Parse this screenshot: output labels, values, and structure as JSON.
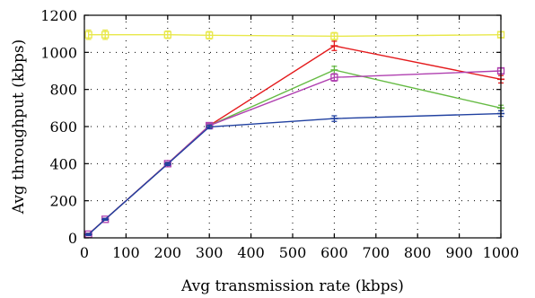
{
  "chart_data": {
    "type": "line",
    "xlabel": "Avg transmission rate (kbps)",
    "ylabel": "Avg throughput (kbps)",
    "xlim": [
      0,
      1000
    ],
    "ylim": [
      0,
      1200
    ],
    "xticks": [
      0,
      100,
      200,
      300,
      400,
      500,
      600,
      700,
      800,
      900,
      1000
    ],
    "yticks": [
      0,
      200,
      400,
      600,
      800,
      1000,
      1200
    ],
    "grid": true,
    "series": [
      {
        "color": "#e8e84a",
        "marker": "square",
        "x": [
          10,
          50,
          200,
          300,
          600,
          1000
        ],
        "y": [
          1095,
          1095,
          1095,
          1092,
          1087,
          1095
        ],
        "err": [
          25,
          25,
          20,
          20,
          20,
          15
        ]
      },
      {
        "color": "#e41a1c",
        "marker": "dash",
        "x": [
          10,
          50,
          200,
          300,
          600,
          1000
        ],
        "y": [
          20,
          100,
          400,
          605,
          1035,
          855
        ],
        "err": [
          5,
          5,
          8,
          10,
          25,
          20
        ]
      },
      {
        "color": "#66bb44",
        "marker": "dash",
        "x": [
          10,
          50,
          200,
          300,
          600,
          1000
        ],
        "y": [
          20,
          100,
          400,
          605,
          905,
          700
        ],
        "err": [
          5,
          5,
          8,
          10,
          20,
          15
        ]
      },
      {
        "color": "#b040b0",
        "marker": "square",
        "x": [
          10,
          50,
          200,
          300,
          600,
          1000
        ],
        "y": [
          20,
          100,
          400,
          605,
          865,
          900
        ],
        "err": [
          5,
          5,
          8,
          10,
          20,
          15
        ]
      },
      {
        "color": "#2040a0",
        "marker": "dash",
        "x": [
          10,
          50,
          200,
          300,
          600,
          1000
        ],
        "y": [
          18,
          100,
          398,
          598,
          643,
          670
        ],
        "err": [
          5,
          5,
          8,
          10,
          15,
          15
        ]
      }
    ]
  }
}
